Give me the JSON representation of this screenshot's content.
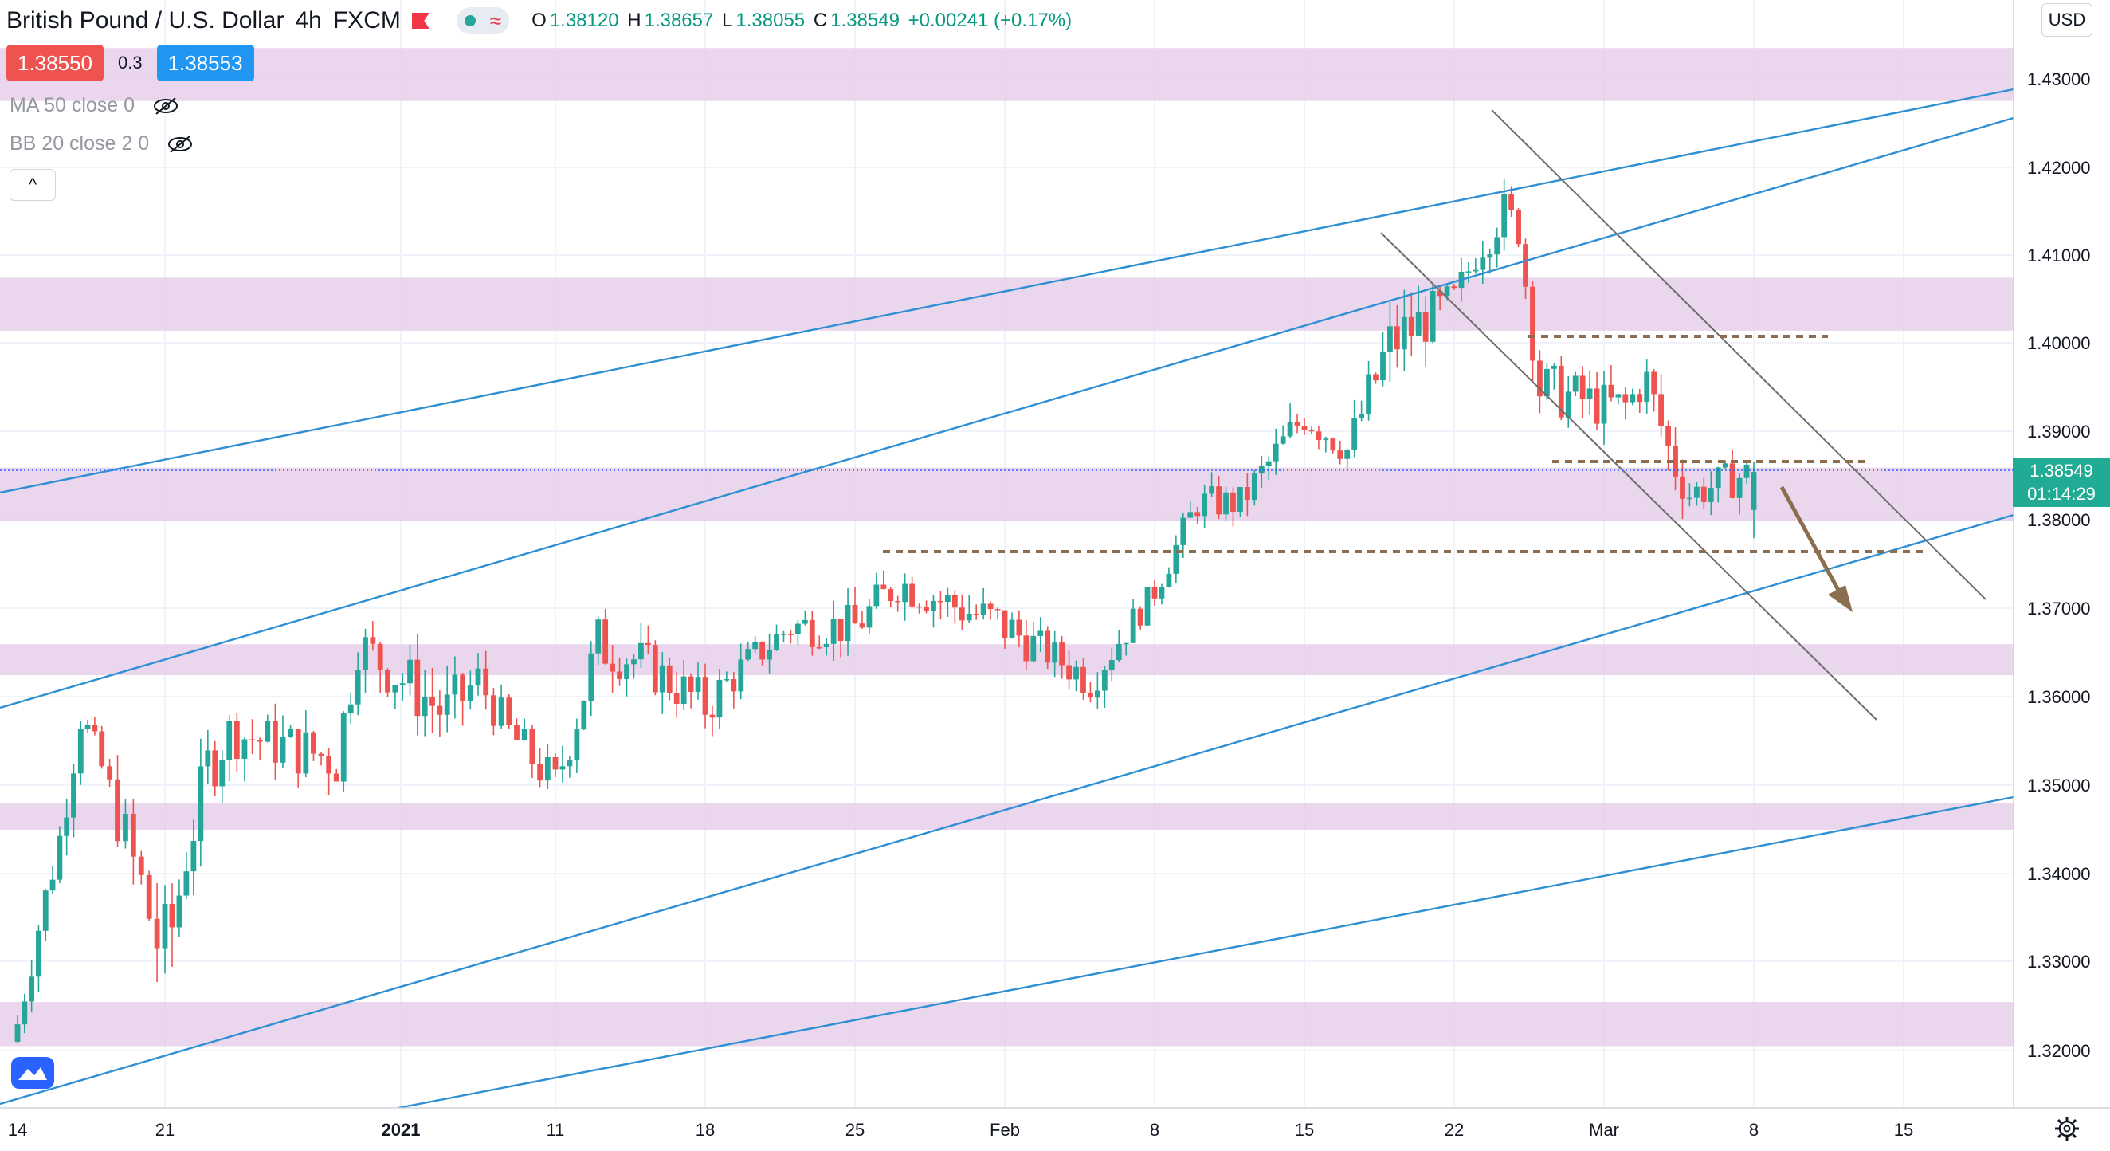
{
  "header": {
    "symbol": "British Pound / U.S. Dollar",
    "interval": "4h",
    "source": "FXCM",
    "ohlc": {
      "open_label": "O",
      "open": "1.38120",
      "high_label": "H",
      "high": "1.38657",
      "low_label": "L",
      "low": "1.38055",
      "close_label": "C",
      "close": "1.38549",
      "change": "+0.00241 (+0.17%)"
    },
    "sell_price": "1.38550",
    "buy_price": "1.38553",
    "spread": "0.3"
  },
  "indicators": [
    {
      "label": "MA 50 close 0",
      "visible": false
    },
    {
      "label": "BB 20 close 2 0",
      "visible": false
    }
  ],
  "currency": "USD",
  "last_price": "1.38549",
  "countdown": "01:14:29",
  "colors": {
    "up": "#26a69a",
    "down": "#ef5350",
    "zone": "#e6cfea",
    "channel": "#2e8fd3",
    "trend_gray": "#6e6e6e",
    "level": "#8b6d50",
    "arrow": "#8b6d50",
    "last_price": "#22ab94"
  },
  "chart_data": {
    "type": "candlestick",
    "symbol": "GBPUSD",
    "timeframe": "4h",
    "y_axis": {
      "ticks": [
        "1.43000",
        "1.42000",
        "1.41000",
        "1.40000",
        "1.39000",
        "1.38000",
        "1.37000",
        "1.36000",
        "1.35000",
        "1.34000",
        "1.33000",
        "1.32000"
      ],
      "range": [
        1.3155,
        1.4385
      ]
    },
    "x_axis": {
      "ticks": [
        {
          "label": "14",
          "date": "2020-12-14"
        },
        {
          "label": "21",
          "date": "2020-12-21"
        },
        {
          "label": "2021",
          "date": "2021-01-01",
          "bold": true
        },
        {
          "label": "11",
          "date": "2021-01-11"
        },
        {
          "label": "18",
          "date": "2021-01-18"
        },
        {
          "label": "25",
          "date": "2021-01-25"
        },
        {
          "label": "Feb",
          "date": "2021-02-01"
        },
        {
          "label": "8",
          "date": "2021-02-08"
        },
        {
          "label": "15",
          "date": "2021-02-15"
        },
        {
          "label": "22",
          "date": "2021-02-22"
        },
        {
          "label": "Mar",
          "date": "2021-03-01"
        },
        {
          "label": "8",
          "date": "2021-03-08"
        },
        {
          "label": "15",
          "date": "2021-03-15"
        }
      ]
    },
    "price_path": [
      {
        "date": "2020-12-14",
        "close": 1.323,
        "low": 1.318,
        "high": 1.326
      },
      {
        "date": "2020-12-15",
        "close": 1.334,
        "low": 1.328,
        "high": 1.338
      },
      {
        "date": "2020-12-16",
        "close": 1.344,
        "low": 1.338,
        "high": 1.348
      },
      {
        "date": "2020-12-17",
        "close": 1.358,
        "low": 1.352,
        "high": 1.3625
      },
      {
        "date": "2020-12-18",
        "close": 1.352,
        "low": 1.348,
        "high": 1.356
      },
      {
        "date": "2020-12-21",
        "close": 1.33,
        "low": 1.319,
        "high": 1.348
      },
      {
        "date": "2020-12-22",
        "close": 1.342,
        "low": 1.333,
        "high": 1.346
      },
      {
        "date": "2020-12-23",
        "close": 1.352,
        "low": 1.34,
        "high": 1.356
      },
      {
        "date": "2020-12-24",
        "close": 1.356,
        "low": 1.351,
        "high": 1.362
      },
      {
        "date": "2020-12-29",
        "close": 1.353,
        "low": 1.344,
        "high": 1.358
      },
      {
        "date": "2020-12-30",
        "close": 1.366,
        "low": 1.358,
        "high": 1.37
      },
      {
        "date": "2021-01-04",
        "close": 1.358,
        "low": 1.354,
        "high": 1.37
      },
      {
        "date": "2021-01-06",
        "close": 1.362,
        "low": 1.356,
        "high": 1.366
      },
      {
        "date": "2021-01-08",
        "close": 1.356,
        "low": 1.352,
        "high": 1.362
      },
      {
        "date": "2021-01-11",
        "close": 1.35,
        "low": 1.345,
        "high": 1.356
      },
      {
        "date": "2021-01-13",
        "close": 1.366,
        "low": 1.356,
        "high": 1.37
      },
      {
        "date": "2021-01-15",
        "close": 1.364,
        "low": 1.36,
        "high": 1.371
      },
      {
        "date": "2021-01-18",
        "close": 1.359,
        "low": 1.352,
        "high": 1.364
      },
      {
        "date": "2021-01-20",
        "close": 1.364,
        "low": 1.358,
        "high": 1.366
      },
      {
        "date": "2021-01-22",
        "close": 1.368,
        "low": 1.365,
        "high": 1.374
      },
      {
        "date": "2021-01-25",
        "close": 1.368,
        "low": 1.362,
        "high": 1.372
      },
      {
        "date": "2021-01-27",
        "close": 1.373,
        "low": 1.366,
        "high": 1.376
      },
      {
        "date": "2021-01-29",
        "close": 1.371,
        "low": 1.365,
        "high": 1.375
      },
      {
        "date": "2021-02-01",
        "close": 1.368,
        "low": 1.364,
        "high": 1.376
      },
      {
        "date": "2021-02-03",
        "close": 1.365,
        "low": 1.362,
        "high": 1.37
      },
      {
        "date": "2021-02-05",
        "close": 1.362,
        "low": 1.357,
        "high": 1.367
      },
      {
        "date": "2021-02-08",
        "close": 1.372,
        "low": 1.368,
        "high": 1.374
      },
      {
        "date": "2021-02-10",
        "close": 1.382,
        "low": 1.378,
        "high": 1.386
      },
      {
        "date": "2021-02-12",
        "close": 1.382,
        "low": 1.378,
        "high": 1.386
      },
      {
        "date": "2021-02-15",
        "close": 1.392,
        "low": 1.385,
        "high": 1.395
      },
      {
        "date": "2021-02-17",
        "close": 1.388,
        "low": 1.384,
        "high": 1.392
      },
      {
        "date": "2021-02-19",
        "close": 1.4,
        "low": 1.385,
        "high": 1.402
      },
      {
        "date": "2021-02-22",
        "close": 1.405,
        "low": 1.399,
        "high": 1.408
      },
      {
        "date": "2021-02-23",
        "close": 1.41,
        "low": 1.405,
        "high": 1.413
      },
      {
        "date": "2021-02-24",
        "close": 1.415,
        "low": 1.409,
        "high": 1.4243
      },
      {
        "date": "2021-02-25",
        "close": 1.413,
        "low": 1.409,
        "high": 1.418
      },
      {
        "date": "2021-02-26",
        "close": 1.395,
        "low": 1.39,
        "high": 1.403
      },
      {
        "date": "2021-03-01",
        "close": 1.393,
        "low": 1.388,
        "high": 1.399
      },
      {
        "date": "2021-03-02",
        "close": 1.393,
        "low": 1.387,
        "high": 1.397
      },
      {
        "date": "2021-03-03",
        "close": 1.396,
        "low": 1.392,
        "high": 1.4
      },
      {
        "date": "2021-03-04",
        "close": 1.388,
        "low": 1.386,
        "high": 1.401
      },
      {
        "date": "2021-03-05",
        "close": 1.383,
        "low": 1.378,
        "high": 1.387
      },
      {
        "date": "2021-03-08",
        "close": 1.3855,
        "low": 1.378,
        "high": 1.3866
      }
    ],
    "drawings": {
      "zones": [
        [
          1.4275,
          1.4335
        ],
        [
          1.4015,
          1.4075
        ],
        [
          1.38,
          1.386
        ],
        [
          1.3625,
          1.366
        ],
        [
          1.345,
          1.348
        ],
        [
          1.3205,
          1.3255
        ]
      ],
      "dashed_levels": [
        {
          "price": 1.4006,
          "from": "2021-02-25",
          "to": "2021-03-09"
        },
        {
          "price": 1.3865,
          "from": "2021-03-01",
          "to": "2021-03-12"
        },
        {
          "price": 1.3763,
          "from": "2021-01-25",
          "to": "2021-03-15"
        }
      ],
      "last_price_line": 1.38549
    }
  }
}
